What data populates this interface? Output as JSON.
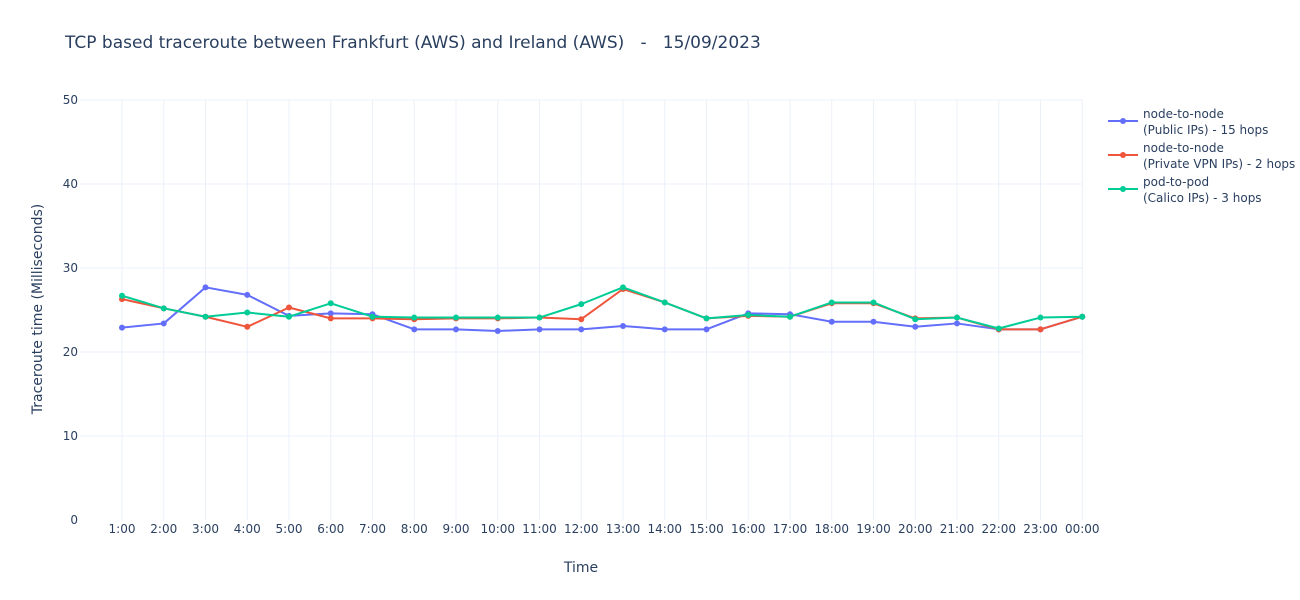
{
  "chart_data": {
    "type": "line",
    "title": "TCP based traceroute between Frankfurt (AWS) and Ireland (AWS)   -   15/09/2023",
    "xlabel": "Time",
    "ylabel": "Traceroute time (Milliseconds)",
    "ylim": [
      0,
      50
    ],
    "yticks": [
      0,
      10,
      20,
      30,
      40,
      50
    ],
    "grid": true,
    "legend_position": "top-right",
    "categories": [
      "1:00",
      "2:00",
      "3:00",
      "4:00",
      "5:00",
      "6:00",
      "7:00",
      "8:00",
      "9:00",
      "10:00",
      "11:00",
      "12:00",
      "13:00",
      "14:00",
      "15:00",
      "16:00",
      "17:00",
      "18:00",
      "19:00",
      "20:00",
      "21:00",
      "22:00",
      "23:00",
      "00:00"
    ],
    "series": [
      {
        "name_line1": "node-to-node",
        "name_line2": "(Public IPs) - 15 hops",
        "color": "#636efa",
        "values": [
          22.9,
          23.4,
          27.7,
          26.8,
          24.3,
          24.6,
          24.5,
          22.7,
          22.7,
          22.5,
          22.7,
          22.7,
          23.1,
          22.7,
          22.7,
          24.6,
          24.5,
          23.6,
          23.6,
          23.0,
          23.4,
          22.7,
          22.7,
          24.2
        ]
      },
      {
        "name_line1": "node-to-node",
        "name_line2": "(Private VPN IPs) - 2 hops",
        "color": "#ef553b",
        "values": [
          26.3,
          25.2,
          24.2,
          23.0,
          25.3,
          24.0,
          24.0,
          23.9,
          24.0,
          24.0,
          24.1,
          23.9,
          27.5,
          25.9,
          24.0,
          24.3,
          24.2,
          25.8,
          25.8,
          24.0,
          24.1,
          22.7,
          22.7,
          24.2
        ]
      },
      {
        "name_line1": "pod-to-pod",
        "name_line2": "(Calico IPs) - 3 hops",
        "color": "#00cc96",
        "values": [
          26.7,
          25.2,
          24.2,
          24.7,
          24.2,
          25.8,
          24.2,
          24.1,
          24.1,
          24.1,
          24.1,
          25.7,
          27.7,
          25.9,
          24.0,
          24.4,
          24.2,
          25.9,
          25.9,
          23.9,
          24.1,
          22.8,
          24.1,
          24.2
        ]
      }
    ]
  }
}
